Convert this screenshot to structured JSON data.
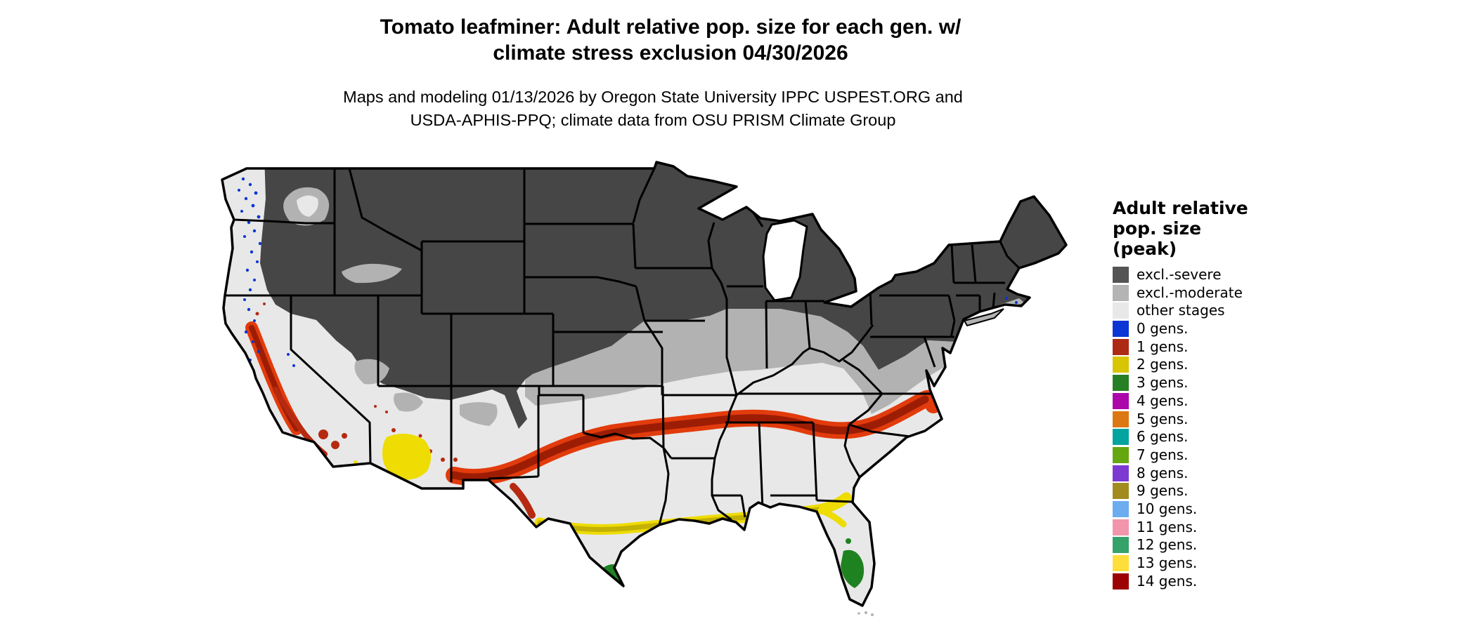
{
  "header": {
    "title_line1": "Tomato leafminer: Adult relative pop. size for each gen. w/",
    "title_line2": "climate stress exclusion 04/30/2026",
    "subtitle_line1": "Maps and modeling 01/13/2026 by Oregon State University IPPC USPEST.ORG and",
    "subtitle_line2": "USDA-APHIS-PPQ; climate data from OSU PRISM Climate Group"
  },
  "legend": {
    "title_line1": "Adult relative",
    "title_line2": "pop. size",
    "title_line3": "(peak)",
    "items": [
      {
        "label": "excl.-severe",
        "color": "#545454"
      },
      {
        "label": "excl.-moderate",
        "color": "#b4b4b4"
      },
      {
        "label": "other stages",
        "color": "#e8e8e8"
      },
      {
        "label": "0 gens.",
        "color": "#0b35d4"
      },
      {
        "label": "1 gens.",
        "color": "#ad2a15"
      },
      {
        "label": "2 gens.",
        "color": "#d8c504"
      },
      {
        "label": "3 gens.",
        "color": "#267f24"
      },
      {
        "label": "4 gens.",
        "color": "#ab07ab"
      },
      {
        "label": "5 gens.",
        "color": "#db7813"
      },
      {
        "label": "6 gens.",
        "color": "#03a3a0"
      },
      {
        "label": "7 gens.",
        "color": "#66a60f"
      },
      {
        "label": "8 gens.",
        "color": "#7d3ad2"
      },
      {
        "label": "9 gens.",
        "color": "#a28b1f"
      },
      {
        "label": "10 gens.",
        "color": "#6dacef"
      },
      {
        "label": "11 gens.",
        "color": "#f295ac"
      },
      {
        "label": "12 gens.",
        "color": "#35a269"
      },
      {
        "label": "13 gens.",
        "color": "#fede3a"
      },
      {
        "label": "14 gens.",
        "color": "#9c0204"
      }
    ]
  },
  "map": {
    "palette": {
      "dark": "#464646",
      "moderate": "#b2b2b2",
      "light": "#e8e8e8",
      "blue": "#0b35d4",
      "red_bright": "#e23b0c",
      "red_mid": "#b52a10",
      "red_core": "#9c1d04",
      "yellow_bright": "#eedc02",
      "yellow_core": "#c3b103",
      "green": "#1f8220",
      "border": "#000000",
      "water": "#ffffff"
    }
  }
}
